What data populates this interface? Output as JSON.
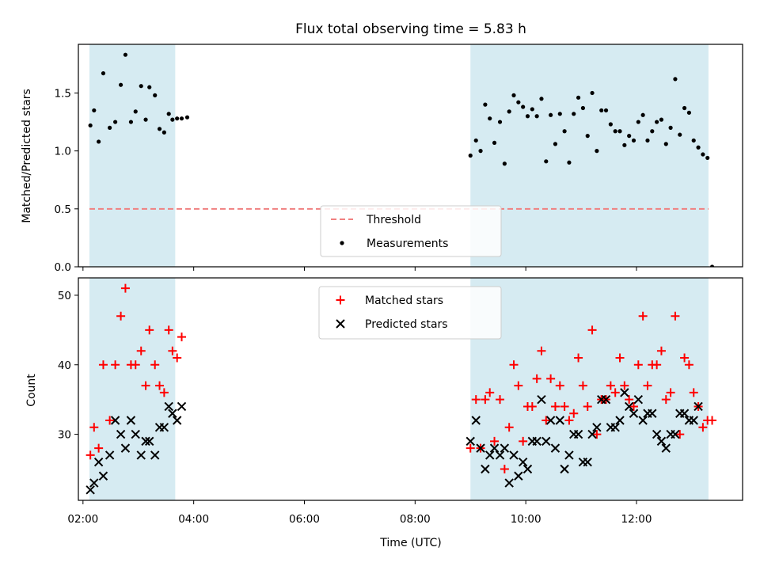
{
  "chart_data": [
    {
      "type": "scatter",
      "title": "Flux total observing time = 5.83 h",
      "ylabel": "Matched/Predicted stars",
      "xlabel": "",
      "xlim": [
        "01:55",
        "13:55"
      ],
      "ylim": [
        0.0,
        1.92
      ],
      "yticks": [
        "0.0",
        "0.5",
        "1.0",
        "1.5"
      ],
      "shaded_intervals": [
        [
          "02:07",
          "03:40"
        ],
        [
          "09:00",
          "13:18"
        ]
      ],
      "shade_color": "#add8e6",
      "legend_position": "lower center",
      "threshold": {
        "name": "Threshold",
        "value": 0.5,
        "x_range": [
          "02:07",
          "13:18"
        ],
        "color": "#f08080",
        "style": "dashed"
      },
      "series": [
        {
          "name": "Measurements",
          "color": "#000000",
          "marker": "dot",
          "points": [
            [
              "02:08",
              1.22
            ],
            [
              "02:12",
              1.35
            ],
            [
              "02:17",
              1.08
            ],
            [
              "02:22",
              1.67
            ],
            [
              "02:29",
              1.2
            ],
            [
              "02:35",
              1.25
            ],
            [
              "02:41",
              1.57
            ],
            [
              "02:46",
              1.83
            ],
            [
              "02:52",
              1.25
            ],
            [
              "02:57",
              1.34
            ],
            [
              "03:03",
              1.56
            ],
            [
              "03:08",
              1.27
            ],
            [
              "03:12",
              1.55
            ],
            [
              "03:18",
              1.48
            ],
            [
              "03:23",
              1.19
            ],
            [
              "03:28",
              1.16
            ],
            [
              "03:33",
              1.32
            ],
            [
              "03:37",
              1.27
            ],
            [
              "03:42",
              1.28
            ],
            [
              "03:47",
              1.28
            ],
            [
              "03:53",
              1.29
            ],
            [
              "09:00",
              0.96
            ],
            [
              "09:06",
              1.09
            ],
            [
              "09:11",
              1.0
            ],
            [
              "09:16",
              1.4
            ],
            [
              "09:21",
              1.28
            ],
            [
              "09:26",
              1.07
            ],
            [
              "09:32",
              1.25
            ],
            [
              "09:37",
              0.89
            ],
            [
              "09:42",
              1.34
            ],
            [
              "09:47",
              1.48
            ],
            [
              "09:52",
              1.42
            ],
            [
              "09:57",
              1.38
            ],
            [
              "10:02",
              1.3
            ],
            [
              "10:07",
              1.36
            ],
            [
              "10:12",
              1.3
            ],
            [
              "10:17",
              1.45
            ],
            [
              "10:22",
              0.91
            ],
            [
              "10:27",
              1.31
            ],
            [
              "10:32",
              1.06
            ],
            [
              "10:37",
              1.32
            ],
            [
              "10:42",
              1.17
            ],
            [
              "10:47",
              0.9
            ],
            [
              "10:52",
              1.32
            ],
            [
              "10:57",
              1.46
            ],
            [
              "11:02",
              1.37
            ],
            [
              "11:07",
              1.13
            ],
            [
              "11:12",
              1.5
            ],
            [
              "11:17",
              1.0
            ],
            [
              "11:22",
              1.35
            ],
            [
              "11:27",
              1.35
            ],
            [
              "11:32",
              1.23
            ],
            [
              "11:37",
              1.17
            ],
            [
              "11:42",
              1.17
            ],
            [
              "11:47",
              1.05
            ],
            [
              "11:52",
              1.13
            ],
            [
              "11:57",
              1.09
            ],
            [
              "12:02",
              1.25
            ],
            [
              "12:07",
              1.31
            ],
            [
              "12:12",
              1.09
            ],
            [
              "12:17",
              1.17
            ],
            [
              "12:22",
              1.25
            ],
            [
              "12:27",
              1.27
            ],
            [
              "12:32",
              1.06
            ],
            [
              "12:37",
              1.2
            ],
            [
              "12:42",
              1.62
            ],
            [
              "12:47",
              1.14
            ],
            [
              "12:52",
              1.37
            ],
            [
              "12:57",
              1.33
            ],
            [
              "13:02",
              1.09
            ],
            [
              "13:07",
              1.03
            ],
            [
              "13:12",
              0.97
            ],
            [
              "13:17",
              0.94
            ],
            [
              "13:22",
              0.0
            ]
          ]
        }
      ]
    },
    {
      "type": "scatter",
      "title": "",
      "ylabel": "Count",
      "xlabel": "Time (UTC)",
      "xlim": [
        "01:55",
        "13:55"
      ],
      "ylim": [
        20.5,
        52.5
      ],
      "yticks": [
        "30",
        "40",
        "50"
      ],
      "xticks": [
        "02:00",
        "04:00",
        "06:00",
        "08:00",
        "10:00",
        "12:00"
      ],
      "shaded_intervals": [
        [
          "02:07",
          "03:40"
        ],
        [
          "09:00",
          "13:18"
        ]
      ],
      "shade_color": "#add8e6",
      "legend_position": "upper center",
      "series": [
        {
          "name": "Matched stars",
          "color": "#ff0000",
          "marker": "plus",
          "points": [
            [
              "02:08",
              27
            ],
            [
              "02:12",
              31
            ],
            [
              "02:17",
              28
            ],
            [
              "02:22",
              40
            ],
            [
              "02:29",
              32
            ],
            [
              "02:35",
              40
            ],
            [
              "02:41",
              47
            ],
            [
              "02:46",
              51
            ],
            [
              "02:52",
              40
            ],
            [
              "02:57",
              40
            ],
            [
              "03:03",
              42
            ],
            [
              "03:08",
              37
            ],
            [
              "03:12",
              45
            ],
            [
              "03:18",
              40
            ],
            [
              "03:23",
              37
            ],
            [
              "03:28",
              36
            ],
            [
              "03:33",
              45
            ],
            [
              "03:37",
              42
            ],
            [
              "03:42",
              41
            ],
            [
              "03:47",
              44
            ],
            [
              "09:00",
              28
            ],
            [
              "09:06",
              35
            ],
            [
              "09:11",
              28
            ],
            [
              "09:16",
              35
            ],
            [
              "09:21",
              36
            ],
            [
              "09:26",
              29
            ],
            [
              "09:32",
              35
            ],
            [
              "09:37",
              25
            ],
            [
              "09:42",
              31
            ],
            [
              "09:47",
              40
            ],
            [
              "09:52",
              37
            ],
            [
              "09:57",
              29
            ],
            [
              "10:02",
              34
            ],
            [
              "10:07",
              34
            ],
            [
              "10:12",
              38
            ],
            [
              "10:17",
              42
            ],
            [
              "10:22",
              32
            ],
            [
              "10:27",
              38
            ],
            [
              "10:32",
              34
            ],
            [
              "10:37",
              37
            ],
            [
              "10:42",
              34
            ],
            [
              "10:47",
              32
            ],
            [
              "10:52",
              33
            ],
            [
              "10:57",
              41
            ],
            [
              "11:02",
              37
            ],
            [
              "11:07",
              34
            ],
            [
              "11:12",
              45
            ],
            [
              "11:17",
              30
            ],
            [
              "11:22",
              35
            ],
            [
              "11:27",
              35
            ],
            [
              "11:32",
              37
            ],
            [
              "11:37",
              36
            ],
            [
              "11:42",
              41
            ],
            [
              "11:47",
              37
            ],
            [
              "11:52",
              35
            ],
            [
              "11:57",
              34
            ],
            [
              "12:02",
              40
            ],
            [
              "12:07",
              47
            ],
            [
              "12:12",
              37
            ],
            [
              "12:17",
              40
            ],
            [
              "12:22",
              40
            ],
            [
              "12:27",
              42
            ],
            [
              "12:32",
              35
            ],
            [
              "12:37",
              36
            ],
            [
              "12:42",
              47
            ],
            [
              "12:47",
              30
            ],
            [
              "12:52",
              41
            ],
            [
              "12:57",
              40
            ],
            [
              "13:02",
              36
            ],
            [
              "13:07",
              34
            ],
            [
              "13:12",
              31
            ],
            [
              "13:17",
              32
            ],
            [
              "13:22",
              32
            ]
          ]
        },
        {
          "name": "Predicted stars",
          "color": "#000000",
          "marker": "x",
          "points": [
            [
              "02:08",
              22
            ],
            [
              "02:12",
              23
            ],
            [
              "02:17",
              26
            ],
            [
              "02:22",
              24
            ],
            [
              "02:29",
              27
            ],
            [
              "02:35",
              32
            ],
            [
              "02:41",
              30
            ],
            [
              "02:46",
              28
            ],
            [
              "02:52",
              32
            ],
            [
              "02:57",
              30
            ],
            [
              "03:03",
              27
            ],
            [
              "03:08",
              29
            ],
            [
              "03:12",
              29
            ],
            [
              "03:18",
              27
            ],
            [
              "03:23",
              31
            ],
            [
              "03:28",
              31
            ],
            [
              "03:33",
              34
            ],
            [
              "03:37",
              33
            ],
            [
              "03:42",
              32
            ],
            [
              "03:47",
              34
            ],
            [
              "09:00",
              29
            ],
            [
              "09:06",
              32
            ],
            [
              "09:11",
              28
            ],
            [
              "09:16",
              25
            ],
            [
              "09:21",
              27
            ],
            [
              "09:26",
              28
            ],
            [
              "09:32",
              27
            ],
            [
              "09:37",
              28
            ],
            [
              "09:42",
              23
            ],
            [
              "09:47",
              27
            ],
            [
              "09:52",
              24
            ],
            [
              "09:57",
              26
            ],
            [
              "10:02",
              25
            ],
            [
              "10:07",
              29
            ],
            [
              "10:12",
              29
            ],
            [
              "10:17",
              35
            ],
            [
              "10:22",
              29
            ],
            [
              "10:27",
              32
            ],
            [
              "10:32",
              28
            ],
            [
              "10:37",
              32
            ],
            [
              "10:42",
              25
            ],
            [
              "10:47",
              27
            ],
            [
              "10:52",
              30
            ],
            [
              "10:57",
              30
            ],
            [
              "11:02",
              26
            ],
            [
              "11:07",
              26
            ],
            [
              "11:12",
              30
            ],
            [
              "11:17",
              31
            ],
            [
              "11:22",
              35
            ],
            [
              "11:27",
              35
            ],
            [
              "11:32",
              31
            ],
            [
              "11:37",
              31
            ],
            [
              "11:42",
              32
            ],
            [
              "11:47",
              36
            ],
            [
              "11:52",
              34
            ],
            [
              "11:57",
              33
            ],
            [
              "12:02",
              35
            ],
            [
              "12:07",
              32
            ],
            [
              "12:12",
              33
            ],
            [
              "12:17",
              33
            ],
            [
              "12:22",
              30
            ],
            [
              "12:27",
              29
            ],
            [
              "12:32",
              28
            ],
            [
              "12:37",
              30
            ],
            [
              "12:42",
              30
            ],
            [
              "12:47",
              33
            ],
            [
              "12:52",
              33
            ],
            [
              "12:57",
              32
            ],
            [
              "13:02",
              32
            ],
            [
              "13:07",
              34
            ]
          ]
        }
      ]
    }
  ]
}
